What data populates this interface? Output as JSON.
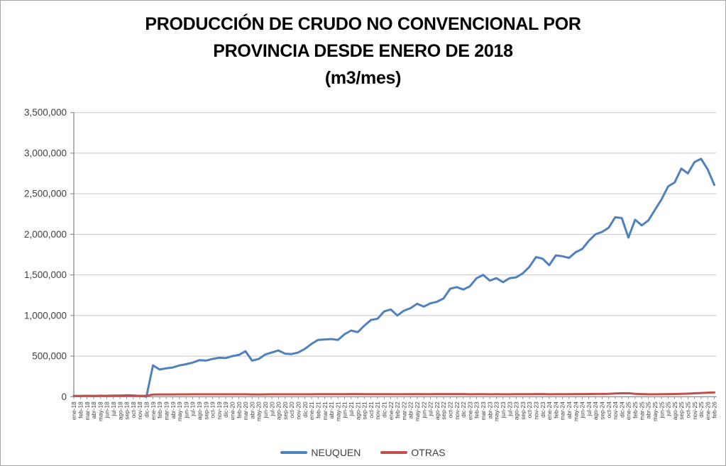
{
  "title": "PRODUCCIÓN DE CRUDO NO CONVENCIONAL POR\nPROVINCIA DESDE ENERO DE 2018\n(m3/mes)",
  "colors": {
    "neuquen_line": "#4F81BD",
    "otras_line": "#C0504D",
    "gridline": "#C6C6C6",
    "axis_line": "#808080",
    "axis_text": "#404040",
    "title_text": "#000000",
    "frame_border": "#A6A6A6"
  },
  "chart_data": {
    "type": "line",
    "title": "PRODUCCIÓN DE CRUDO NO CONVENCIONAL POR PROVINCIA DESDE ENERO DE 2018 (m3/mes)",
    "xlabel": "",
    "ylabel": "",
    "ylim": [
      0,
      3500000
    ],
    "grid": true,
    "legend_position": "bottom",
    "y_ticks": [
      0,
      500000,
      1000000,
      1500000,
      2000000,
      2500000,
      3000000,
      3500000
    ],
    "y_tick_labels": [
      "0",
      "500,000",
      "1,000,000",
      "1,500,000",
      "2,000,000",
      "2,500,000",
      "3,000,000",
      "3,500,000"
    ],
    "categories": [
      "ene-18",
      "feb-18",
      "mar-18",
      "abr-18",
      "may-18",
      "jun-18",
      "jul-18",
      "ago-18",
      "sep-18",
      "oct-18",
      "nov-18",
      "dic-18",
      "ene-19",
      "feb-19",
      "mar-19",
      "abr-19",
      "may-19",
      "jun-19",
      "jul-19",
      "ago-19",
      "sep-19",
      "oct-19",
      "nov-19",
      "dic-19",
      "ene-20",
      "feb-20",
      "mar-20",
      "abr-20",
      "may-20",
      "jun-20",
      "jul-20",
      "ago-20",
      "sep-20",
      "oct-20",
      "nov-20",
      "dic-20",
      "ene-21",
      "feb-21",
      "mar-21",
      "abr-21",
      "may-21",
      "jun-21",
      "jul-21",
      "ago-21",
      "sep-21",
      "oct-21",
      "nov-21",
      "dic-21",
      "ene-22",
      "feb-22",
      "mar-22",
      "abr-22",
      "may-22",
      "jun-22",
      "jul-22",
      "ago-22",
      "sep-22",
      "oct-22",
      "nov-22",
      "dic-22",
      "ene-23",
      "feb-23",
      "mar-23",
      "abr-23",
      "may-23",
      "jun-23",
      "jul-23",
      "ago-23",
      "sep-23",
      "oct-23",
      "nov-23",
      "dic-23",
      "ene-24",
      "feb-24",
      "mar-24",
      "abr-24",
      "may-24",
      "jun-24",
      "jul-24",
      "ago-24",
      "sep-24",
      "oct-24",
      "nov-24",
      "dic-24",
      "ene-25",
      "feb-25",
      "mar-25",
      "abr-25",
      "may-25",
      "jun-25",
      "jul-25",
      "ago-25",
      "sep-25",
      "oct-25",
      "nov-25",
      "dic-25",
      "ene-26",
      "feb-26"
    ],
    "series": [
      {
        "name": "NEUQUEN",
        "color": "#4F81BD",
        "values": [
          10000,
          9000,
          11000,
          10000,
          12000,
          11000,
          13000,
          14000,
          18000,
          16000,
          8000,
          2000,
          385000,
          335000,
          350000,
          360000,
          385000,
          400000,
          420000,
          450000,
          445000,
          465000,
          480000,
          475000,
          500000,
          515000,
          560000,
          445000,
          465000,
          520000,
          545000,
          570000,
          530000,
          525000,
          545000,
          590000,
          650000,
          700000,
          705000,
          710000,
          700000,
          770000,
          815000,
          795000,
          875000,
          945000,
          960000,
          1050000,
          1075000,
          1000000,
          1060000,
          1090000,
          1145000,
          1110000,
          1150000,
          1170000,
          1210000,
          1330000,
          1350000,
          1320000,
          1360000,
          1460000,
          1500000,
          1430000,
          1460000,
          1410000,
          1460000,
          1470000,
          1520000,
          1600000,
          1720000,
          1700000,
          1620000,
          1740000,
          1730000,
          1710000,
          1780000,
          1820000,
          1920000,
          2000000,
          2030000,
          2080000,
          2210000,
          2200000,
          1960000,
          2180000,
          2110000,
          2170000,
          2300000,
          2430000,
          2590000,
          2640000,
          2810000,
          2750000,
          2890000,
          2930000,
          2800000,
          2610000
        ]
      },
      {
        "name": "OTRAS",
        "color": "#C0504D",
        "values": [
          10000,
          10000,
          11000,
          10000,
          11000,
          11000,
          12000,
          12000,
          12000,
          12000,
          11000,
          11000,
          27000,
          28000,
          28000,
          28000,
          29000,
          29000,
          30000,
          30000,
          30000,
          30000,
          30000,
          30000,
          30000,
          30000,
          30000,
          28000,
          28000,
          29000,
          30000,
          30000,
          30000,
          30000,
          30000,
          30000,
          30000,
          31000,
          31000,
          31000,
          31000,
          31000,
          32000,
          32000,
          31000,
          31000,
          31000,
          31000,
          31000,
          30000,
          31000,
          31000,
          32000,
          31000,
          31000,
          32000,
          32000,
          32000,
          32000,
          32000,
          30000,
          31000,
          31000,
          30000,
          31000,
          30000,
          30000,
          31000,
          31000,
          31000,
          32000,
          32000,
          30000,
          31000,
          31000,
          31000,
          32000,
          32000,
          33000,
          34000,
          34000,
          35000,
          40000,
          42000,
          43000,
          36000,
          32000,
          30000,
          30000,
          31000,
          32000,
          33000,
          35000,
          38000,
          42000,
          45000,
          50000,
          52000
        ]
      }
    ]
  }
}
